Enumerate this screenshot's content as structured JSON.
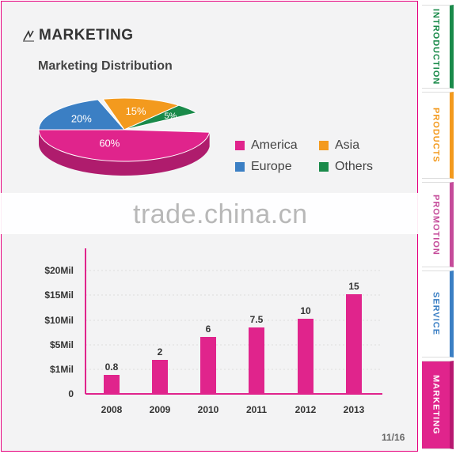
{
  "section": {
    "title": "MARKETING"
  },
  "pie_chart": {
    "title": "Marketing Distribution",
    "slices": [
      {
        "name": "America",
        "value": 60,
        "label": "60%",
        "color": "#e0248c"
      },
      {
        "name": "Europe",
        "value": 20,
        "label": "20%",
        "color": "#3b7fc4"
      },
      {
        "name": "Asia",
        "value": 15,
        "label": "15%",
        "color": "#f39a1e"
      },
      {
        "name": "Others",
        "value": 5,
        "label": "5%",
        "color": "#1a8a4a"
      }
    ]
  },
  "chart_data": {
    "type": "bar",
    "categories": [
      "2008",
      "2009",
      "2010",
      "2011",
      "2012",
      "2013"
    ],
    "values": [
      0.8,
      2,
      6,
      7.5,
      10,
      15
    ],
    "data_labels": [
      "0.8",
      "2",
      "6",
      "7.5",
      "10",
      "15"
    ],
    "y_tick_labels": [
      "0",
      "$1Mil",
      "$5Mil",
      "$10Mil",
      "$15Mil",
      "$20Mil"
    ],
    "y_tick_values": [
      0,
      1,
      5,
      10,
      15,
      20
    ],
    "ylim": [
      0,
      20
    ],
    "bar_color": "#e0248c"
  },
  "watermark": "trade.china.cn",
  "page_number": "11/16",
  "tabs": [
    {
      "label": "INTRODUCTION",
      "color": "#1a8a4a",
      "active": false
    },
    {
      "label": "PRODUCTS",
      "color": "#f39a1e",
      "active": false
    },
    {
      "label": "PROMOTION",
      "color": "#c54b9a",
      "active": false
    },
    {
      "label": "SERVICE",
      "color": "#3b7fc4",
      "active": false
    },
    {
      "label": "MARKETING",
      "color": "#e0248c",
      "active": true
    }
  ]
}
